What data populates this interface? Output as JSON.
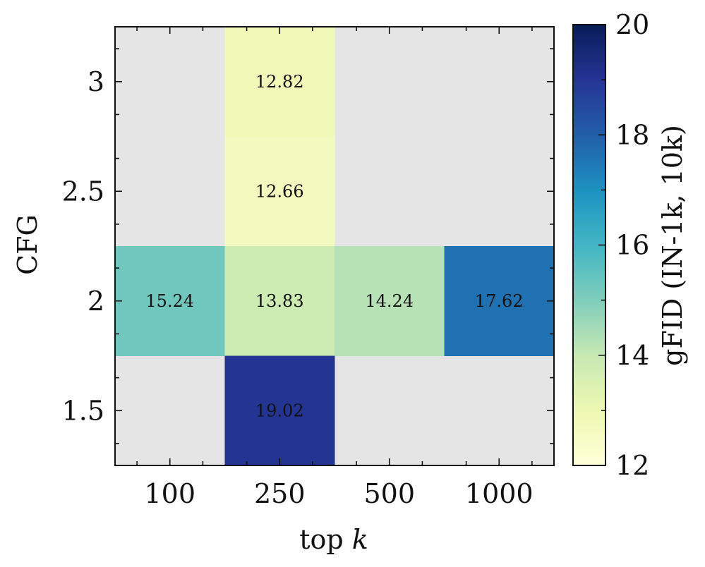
{
  "chart_data": {
    "type": "heatmap",
    "x_categories": [
      "100",
      "250",
      "500",
      "1000"
    ],
    "y_categories": [
      "3",
      "2.5",
      "2",
      "1.5"
    ],
    "xlabel": "top k",
    "xlabel_parts": [
      "top ",
      "k"
    ],
    "ylabel": "CFG",
    "cells": [
      {
        "x": "250",
        "y": "3",
        "value": 12.82,
        "label": "12.82"
      },
      {
        "x": "250",
        "y": "2.5",
        "value": 12.66,
        "label": "12.66"
      },
      {
        "x": "100",
        "y": "2",
        "value": 15.24,
        "label": "15.24"
      },
      {
        "x": "250",
        "y": "2",
        "value": 13.83,
        "label": "13.83"
      },
      {
        "x": "500",
        "y": "2",
        "value": 14.24,
        "label": "14.24"
      },
      {
        "x": "1000",
        "y": "2",
        "value": 17.62,
        "label": "17.62"
      },
      {
        "x": "250",
        "y": "1.5",
        "value": 19.02,
        "label": "19.02"
      }
    ],
    "missing_color": "#e5e5e5",
    "colorbar": {
      "label": "gFID (IN-1k, 10k)",
      "range": [
        12,
        20
      ],
      "ticks": [
        "12",
        "14",
        "16",
        "18",
        "20"
      ],
      "colormap": "YlGnBu",
      "stops": [
        "#ffffd9",
        "#edf8b1",
        "#c7e9b4",
        "#7fcdbb",
        "#41b6c4",
        "#1d91c0",
        "#225ea8",
        "#253494",
        "#081d58"
      ]
    },
    "grid": false
  }
}
